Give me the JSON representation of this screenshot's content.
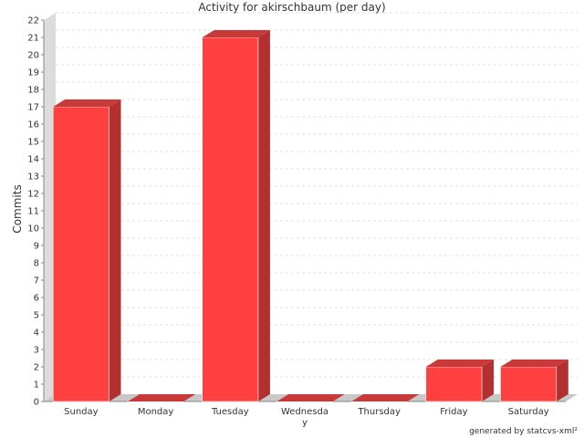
{
  "chart_data": {
    "type": "bar",
    "title": "Activity for akirschbaum (per day)",
    "ylabel": "Commits",
    "xlabel": "",
    "categories": [
      "Sunday",
      "Monday",
      "Tuesday",
      "Wednesday",
      "Thursday",
      "Friday",
      "Saturday"
    ],
    "category_label_lines": [
      [
        "Sunday"
      ],
      [
        "Monday"
      ],
      [
        "Tuesday"
      ],
      [
        "Wednesda",
        "y"
      ],
      [
        "Thursday"
      ],
      [
        "Friday"
      ],
      [
        "Saturday"
      ]
    ],
    "values": [
      17,
      0,
      21,
      0,
      0,
      2,
      2
    ],
    "ylim": [
      0,
      22
    ],
    "yticks": [
      0,
      1,
      2,
      3,
      4,
      5,
      6,
      7,
      8,
      9,
      10,
      11,
      12,
      13,
      14,
      15,
      16,
      17,
      18,
      19,
      20,
      21,
      22
    ],
    "grid": true,
    "legend": "none",
    "style": "3d",
    "colors": {
      "bar_front": "#ff4040",
      "bar_top": "#c83a3a",
      "bar_side": "#b33030",
      "floor": "#c8c8c8",
      "wall": "#dcdcdc",
      "grid": "#e2e2e2"
    }
  },
  "footer": "generated by statcvs-xml²"
}
